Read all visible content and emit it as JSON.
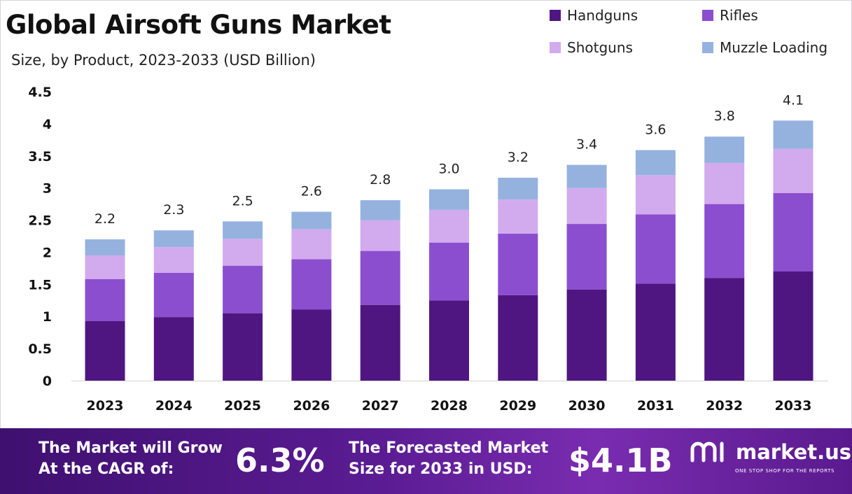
{
  "header": {
    "title": "Global Airsoft Guns Market",
    "subtitle": "Size, by Product, 2023-2033 (USD Billion)"
  },
  "colors": {
    "handguns": "#4f1682",
    "rifles": "#8b4ecf",
    "shotguns": "#d2aaee",
    "muzzle_loading": "#95b2df",
    "banner": "#5b1c93"
  },
  "chart_data": {
    "type": "bar",
    "stacked": true,
    "categories": [
      "2023",
      "2024",
      "2025",
      "2026",
      "2027",
      "2028",
      "2029",
      "2030",
      "2031",
      "2032",
      "2033"
    ],
    "series": [
      {
        "name": "Handguns",
        "values": [
          0.93,
          0.99,
          1.05,
          1.11,
          1.18,
          1.25,
          1.33,
          1.42,
          1.51,
          1.6,
          1.7
        ]
      },
      {
        "name": "Rifles",
        "values": [
          0.65,
          0.69,
          0.74,
          0.78,
          0.84,
          0.9,
          0.96,
          1.02,
          1.08,
          1.15,
          1.22
        ]
      },
      {
        "name": "Shotguns",
        "values": [
          0.37,
          0.4,
          0.42,
          0.47,
          0.48,
          0.51,
          0.53,
          0.56,
          0.61,
          0.64,
          0.69
        ]
      },
      {
        "name": "Muzzle Loading",
        "values": [
          0.25,
          0.26,
          0.27,
          0.27,
          0.31,
          0.32,
          0.34,
          0.36,
          0.39,
          0.41,
          0.44
        ]
      }
    ],
    "totals": [
      "2.2",
      "2.3",
      "2.5",
      "2.6",
      "2.8",
      "3.0",
      "3.2",
      "3.4",
      "3.6",
      "3.8",
      "4.1"
    ],
    "y_ticks": [
      "0",
      "0.5",
      "1",
      "1.5",
      "2",
      "2.5",
      "3",
      "3.5",
      "4",
      "4.5"
    ],
    "ylim": [
      0,
      4.5
    ],
    "xlabel": "",
    "ylabel": "",
    "grid": false,
    "legend_position": "top-right"
  },
  "legend": [
    {
      "label": "Handguns",
      "color": "#4f1682"
    },
    {
      "label": "Rifles",
      "color": "#8b4ecf"
    },
    {
      "label": "Shotguns",
      "color": "#d2aaee"
    },
    {
      "label": "Muzzle Loading",
      "color": "#95b2df"
    }
  ],
  "banner": {
    "cagr_label": "The Market will Grow\nAt the CAGR of:",
    "cagr_value": "6.3%",
    "forecast_label": "The Forecasted Market\nSize for 2033 in USD:",
    "forecast_value": "$4.1B",
    "logo_name": "market.us",
    "logo_tagline": "ONE STOP SHOP FOR THE REPORTS"
  }
}
